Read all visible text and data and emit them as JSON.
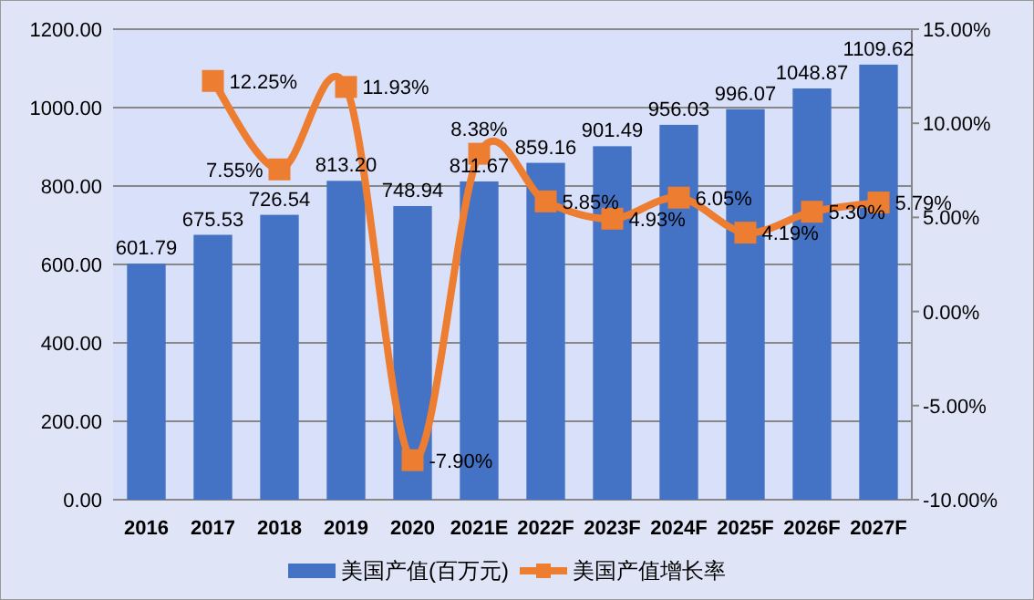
{
  "chart_data": {
    "type": "bar",
    "categories": [
      "2016",
      "2017",
      "2018",
      "2019",
      "2020",
      "2021E",
      "2022F",
      "2023F",
      "2024F",
      "2025F",
      "2026F",
      "2027F"
    ],
    "series": [
      {
        "name": "美国产值(百万元)",
        "color": "#4472c4",
        "values": [
          601.79,
          675.53,
          726.54,
          813.2,
          748.94,
          811.67,
          859.16,
          901.49,
          956.03,
          996.07,
          1048.87,
          1109.62
        ],
        "value_labels": [
          "601.79",
          "675.53",
          "726.54",
          "813.20",
          "748.94",
          "811.67",
          "859.16",
          "901.49",
          "956.03",
          "996.07",
          "1048.87",
          "1109.62"
        ]
      },
      {
        "name": "美国产值增长率",
        "type": "line",
        "axis": "y2",
        "color": "#ed7d31",
        "marker": "square",
        "values": [
          null,
          12.25,
          7.55,
          11.93,
          -7.9,
          8.38,
          5.85,
          4.93,
          6.05,
          4.19,
          5.3,
          5.79
        ],
        "value_labels": [
          null,
          "12.25%",
          "7.55%",
          "11.93%",
          "-7.90%",
          "8.38%",
          "5.85%",
          "4.93%",
          "6.05%",
          "4.19%",
          "5.30%",
          "5.79%"
        ]
      }
    ],
    "ylim": [
      0,
      1200
    ],
    "yticks": [
      {
        "value": 0,
        "label": "0.00"
      },
      {
        "value": 200,
        "label": "200.00"
      },
      {
        "value": 400,
        "label": "400.00"
      },
      {
        "value": 600,
        "label": "600.00"
      },
      {
        "value": 800,
        "label": "800.00"
      },
      {
        "value": 1000,
        "label": "1000.00"
      },
      {
        "value": 1200,
        "label": "1200.00"
      }
    ],
    "y2lim": [
      -10,
      15
    ],
    "y2ticks": [
      {
        "value": -10,
        "label": "-10.00%"
      },
      {
        "value": -5,
        "label": "-5.00%"
      },
      {
        "value": 0,
        "label": "0.00%"
      },
      {
        "value": 5,
        "label": "5.00%"
      },
      {
        "value": 10,
        "label": "10.00%"
      },
      {
        "value": 15,
        "label": "15.00%"
      }
    ],
    "grid": "y",
    "legend": "bottom"
  }
}
